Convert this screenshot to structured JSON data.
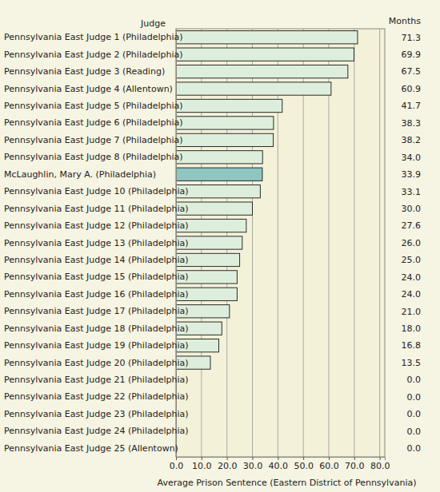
{
  "chart_data": {
    "type": "bar",
    "orientation": "horizontal",
    "ylabel": "Judge",
    "xlabel": "Average Prison Sentence (Eastern District of Pennsylvania)",
    "annotations": [
      "Months"
    ],
    "categories": [
      "Pennsylvania East Judge 1 (Philadelphia)",
      "Pennsylvania East Judge 2 (Philadelphia)",
      "Pennsylvania East Judge 3 (Reading)",
      "Pennsylvania East Judge 4 (Allentown)",
      "Pennsylvania East Judge 5 (Philadelphia)",
      "Pennsylvania East Judge 6 (Philadelphia)",
      "Pennsylvania East Judge 7 (Philadelphia)",
      "Pennsylvania East Judge 8 (Philadelphia)",
      "McLaughlin, Mary A. (Philadelphia)",
      "Pennsylvania East Judge 10 (Philadelphia)",
      "Pennsylvania East Judge 11 (Philadelphia)",
      "Pennsylvania East Judge 12 (Philadelphia)",
      "Pennsylvania East Judge 13 (Philadelphia)",
      "Pennsylvania East Judge 14 (Philadelphia)",
      "Pennsylvania East Judge 15 (Philadelphia)",
      "Pennsylvania East Judge 16 (Philadelphia)",
      "Pennsylvania East Judge 17 (Philadelphia)",
      "Pennsylvania East Judge 18 (Philadelphia)",
      "Pennsylvania East Judge 19 (Philadelphia)",
      "Pennsylvania East Judge 20 (Philadelphia)",
      "Pennsylvania East Judge 21 (Philadelphia)",
      "Pennsylvania East Judge 22 (Philadelphia)",
      "Pennsylvania East Judge 23 (Philadelphia)",
      "Pennsylvania East Judge 24 (Philadelphia)",
      "Pennsylvania East Judge 25 (Allentown)"
    ],
    "values": [
      71.3,
      69.9,
      67.5,
      60.9,
      41.7,
      38.3,
      38.2,
      34.0,
      33.9,
      33.1,
      30.0,
      27.6,
      26.0,
      25.0,
      24.0,
      24.0,
      21.0,
      18.0,
      16.8,
      13.5,
      0,
      0,
      0,
      0,
      0
    ],
    "value_labels": [
      "71.3",
      "69.9",
      "67.5",
      "60.9",
      "41.7",
      "38.3",
      "38.2",
      "34.0",
      "33.9",
      "33.1",
      "30.0",
      "27.6",
      "26.0",
      "25.0",
      "24.0",
      "24.0",
      "21.0",
      "18.0",
      "16.8",
      "13.5",
      "0.0",
      "0.0",
      "0.0",
      "0.0",
      "0.0"
    ],
    "data_labels": true,
    "colors": [
      "#ddefdc",
      "#ddefdc",
      "#ddefdc",
      "#ddefdc",
      "#ddefdc",
      "#ddefdc",
      "#ddefdc",
      "#ddefdc",
      "#8ec6c2",
      "#ddefdc",
      "#ddefdc",
      "#ddefdc",
      "#ddefdc",
      "#ddefdc",
      "#ddefdc",
      "#ddefdc",
      "#ddefdc",
      "#ddefdc",
      "#ddefdc",
      "#ddefdc",
      "#ddefdc",
      "#ddefdc",
      "#ddefdc",
      "#ddefdc",
      "#ddefdc"
    ],
    "xlim": [
      0,
      82
    ],
    "xticks": [
      {
        "value": 0,
        "label": "0.0"
      },
      {
        "value": 10,
        "label": "10.0"
      },
      {
        "value": 20,
        "label": "20.0"
      },
      {
        "value": 30,
        "label": "30.0"
      },
      {
        "value": 40,
        "label": "40.0"
      },
      {
        "value": 50,
        "label": "50.0"
      },
      {
        "value": 60,
        "label": "60.0"
      },
      {
        "value": 70,
        "label": "70.0"
      },
      {
        "value": 80,
        "label": "80.0"
      }
    ],
    "grid": true
  }
}
